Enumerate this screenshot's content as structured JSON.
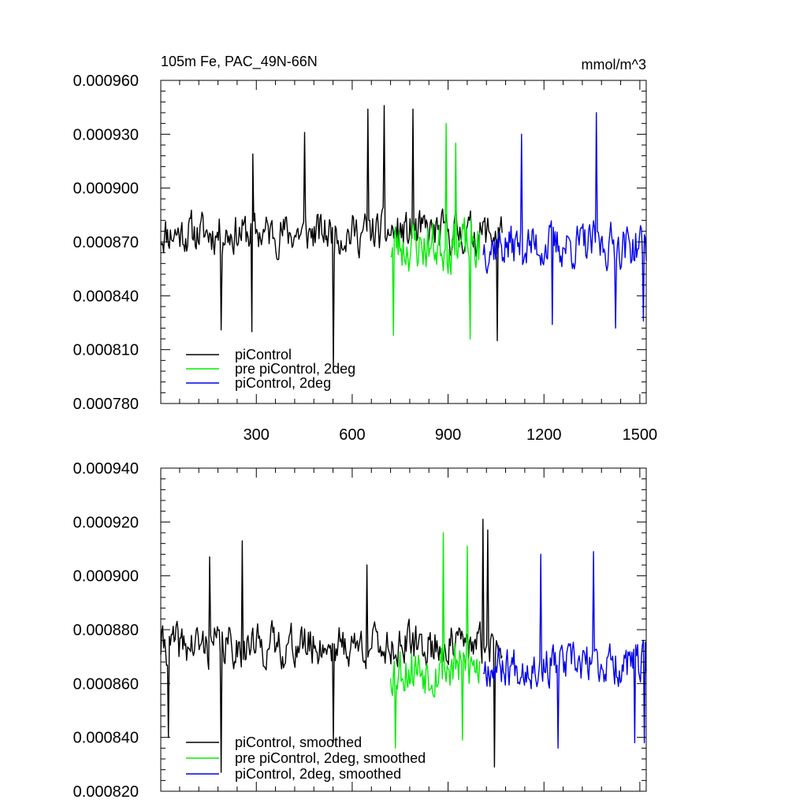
{
  "colors": {
    "piControl": "#000000",
    "pre_piControl_2deg": "#00ee00",
    "piControl_2deg": "#0000ee"
  },
  "chart_data": [
    {
      "type": "line",
      "title": "105m Fe, PAC_49N-66N",
      "units": "mmol/m^3",
      "xlim": [
        1,
        1520
      ],
      "ylim": [
        0.00078,
        0.00096
      ],
      "xticks": [
        300,
        600,
        900,
        1200,
        1500
      ],
      "yticks": [
        "0.000780",
        "0.000810",
        "0.000840",
        "0.000870",
        "0.000900",
        "0.000930",
        "0.000960"
      ],
      "grid": false,
      "legend_position": "bottom-left",
      "series": [
        {
          "name": "piControl",
          "color_key": "piControl",
          "x_start": 1,
          "x_end": 1070,
          "mean": 0.000875,
          "amplitude": 1.1e-05,
          "seed": 11,
          "peaks": [
            [
              290,
              0.000919
            ],
            [
              452,
              0.000931
            ],
            [
              650,
              0.000944
            ],
            [
              700,
              0.000946
            ],
            [
              790,
              0.000944
            ]
          ],
          "troughs": [
            [
              190,
              0.000821
            ],
            [
              285,
              0.00082
            ],
            [
              540,
              0.000799
            ],
            [
              1055,
              0.000815
            ]
          ]
        },
        {
          "name": "pre piControl, 2deg",
          "color_key": "pre_piControl_2deg",
          "x_start": 720,
          "x_end": 1000,
          "mean": 0.000868,
          "amplitude": 1.4e-05,
          "seed": 23,
          "peaks": [
            [
              893,
              0.000936
            ],
            [
              925,
              0.000925
            ]
          ],
          "troughs": [
            [
              730,
              0.000818
            ],
            [
              970,
              0.000816
            ]
          ]
        },
        {
          "name": "piControl, 2deg",
          "color_key": "piControl_2deg",
          "x_start": 1010,
          "x_end": 1520,
          "mean": 0.000868,
          "amplitude": 1.2e-05,
          "seed": 37,
          "peaks": [
            [
              1130,
              0.00093
            ],
            [
              1365,
              0.000942
            ]
          ],
          "troughs": [
            [
              1225,
              0.000824
            ],
            [
              1425,
              0.000822
            ],
            [
              1510,
              0.000826
            ]
          ]
        }
      ]
    },
    {
      "type": "line",
      "title": "",
      "xlim": [
        1,
        1520
      ],
      "ylim": [
        0.00082,
        0.00094
      ],
      "xticks": [
        300,
        600,
        900,
        1200,
        1500
      ],
      "yticks": [
        "0.000820",
        "0.000840",
        "0.000860",
        "0.000880",
        "0.000900",
        "0.000920",
        "0.000940"
      ],
      "grid": false,
      "legend_position": "bottom-left",
      "series": [
        {
          "name": "piControl, smoothed",
          "color_key": "piControl",
          "x_start": 1,
          "x_end": 1070,
          "mean": 0.000874,
          "amplitude": 7.5e-06,
          "seed": 41,
          "peaks": [
            [
              155,
              0.000907
            ],
            [
              255,
              0.000913
            ],
            [
              645,
              0.000904
            ],
            [
              1010,
              0.000921
            ],
            [
              1025,
              0.000917
            ]
          ],
          "troughs": [
            [
              25,
              0.00084
            ],
            [
              190,
              0.000827
            ],
            [
              540,
              0.000838
            ],
            [
              1045,
              0.000829
            ]
          ]
        },
        {
          "name": "pre piControl, 2deg, smoothed",
          "color_key": "pre_piControl_2deg",
          "x_start": 720,
          "x_end": 1000,
          "mean": 0.000866,
          "amplitude": 9.5e-06,
          "seed": 53,
          "peaks": [
            [
              885,
              0.000916
            ],
            [
              960,
              0.000911
            ]
          ],
          "troughs": [
            [
              735,
              0.000836
            ],
            [
              945,
              0.000839
            ]
          ]
        },
        {
          "name": "piControl, 2deg, smoothed",
          "color_key": "piControl_2deg",
          "x_start": 1010,
          "x_end": 1520,
          "mean": 0.000867,
          "amplitude": 7.5e-06,
          "seed": 67,
          "peaks": [
            [
              1190,
              0.000908
            ],
            [
              1355,
              0.000909
            ]
          ],
          "troughs": [
            [
              1245,
              0.000836
            ],
            [
              1485,
              0.000838
            ],
            [
              1515,
              0.000838
            ]
          ]
        }
      ]
    }
  ]
}
